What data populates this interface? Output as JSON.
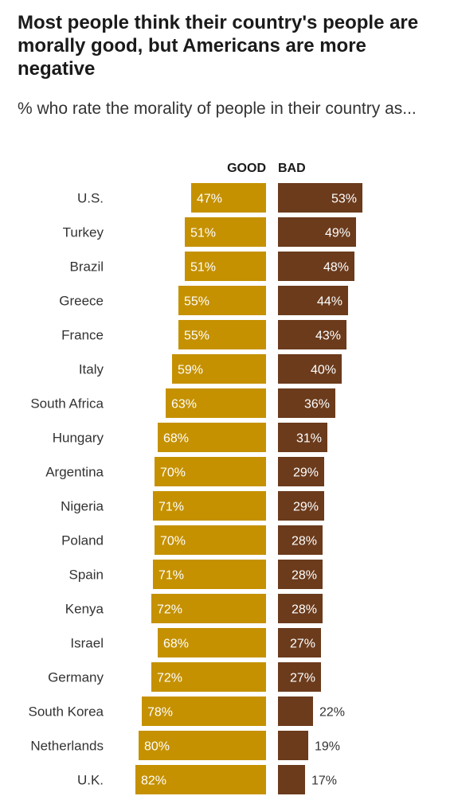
{
  "title": "Most people think their country's people are morally good, but Americans are more negative",
  "subtitle": "% who rate the morality of people in their country as...",
  "colors": {
    "good": "#C59100",
    "bad": "#6B3B1C",
    "label_inside": "#ffffff",
    "label_outside": "#333333"
  },
  "chart_data": {
    "type": "bar",
    "orientation": "horizontal-diverging",
    "title": "Most people think their country's people are morally good, but Americans are more negative",
    "subtitle": "% who rate the morality of people in their country as...",
    "unit": "%",
    "categories": [
      "U.S.",
      "Turkey",
      "Brazil",
      "Greece",
      "France",
      "Italy",
      "South Africa",
      "Hungary",
      "Argentina",
      "Nigeria",
      "Poland",
      "Spain",
      "Kenya",
      "Israel",
      "Germany",
      "South Korea",
      "Netherlands",
      "U.K."
    ],
    "series": [
      {
        "name": "GOOD",
        "values": [
          47,
          51,
          51,
          55,
          55,
          59,
          63,
          68,
          70,
          71,
          70,
          71,
          72,
          68,
          72,
          78,
          80,
          82
        ]
      },
      {
        "name": "BAD",
        "values": [
          53,
          49,
          48,
          44,
          43,
          40,
          36,
          31,
          29,
          29,
          28,
          28,
          28,
          27,
          27,
          22,
          19,
          17
        ]
      }
    ],
    "legend": "column headers above bars"
  }
}
